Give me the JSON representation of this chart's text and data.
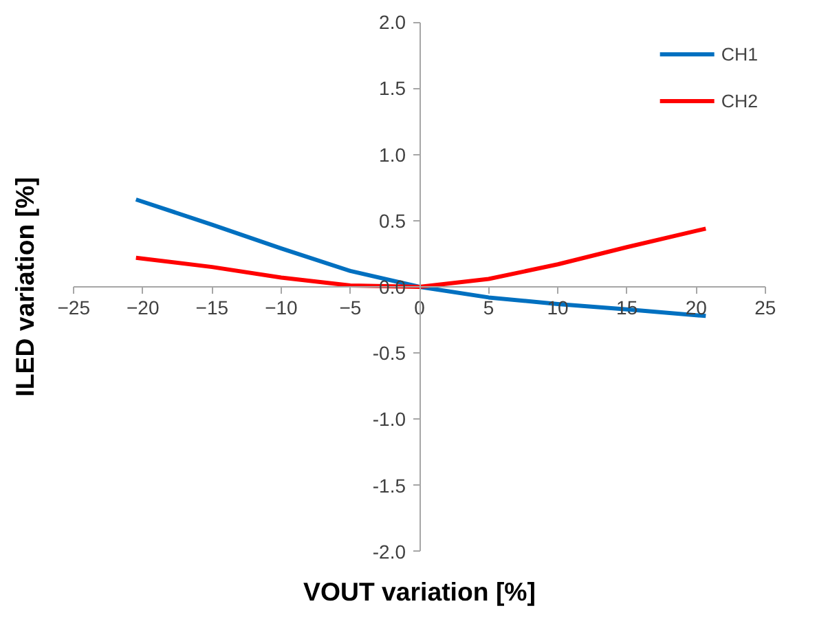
{
  "chart_data": {
    "type": "line",
    "xlabel": "VOUT variation [%]",
    "ylabel": "ILED variation [%]",
    "xlim": [
      -25,
      25
    ],
    "ylim": [
      -2.0,
      2.0
    ],
    "xticks": [
      -25,
      -20,
      -15,
      -10,
      -5,
      0,
      5,
      10,
      15,
      20,
      25
    ],
    "yticks": [
      {
        "value": -2,
        "label": "-2.0"
      },
      {
        "value": -1.5,
        "label": "-1.5"
      },
      {
        "value": -1,
        "label": "-1.0"
      },
      {
        "value": -0.5,
        "label": "-0.5"
      },
      {
        "value": 0,
        "label": "0.0"
      },
      {
        "value": 0.5,
        "label": "0.5"
      },
      {
        "value": 1,
        "label": "1.0"
      },
      {
        "value": 1.5,
        "label": "1.5"
      },
      {
        "value": 2,
        "label": "2.0"
      }
    ],
    "x": [
      -20.5,
      -15,
      -10,
      -5,
      0,
      5,
      10,
      15,
      20.7
    ],
    "series": [
      {
        "name": "CH1",
        "color": "#0070c0",
        "values": [
          0.66,
          0.47,
          0.29,
          0.12,
          0,
          -0.08,
          -0.13,
          -0.17,
          -0.22
        ]
      },
      {
        "name": "CH2",
        "color": "#ff0000",
        "values": [
          0.22,
          0.15,
          0.07,
          0.01,
          0,
          0.06,
          0.17,
          0.3,
          0.44
        ]
      }
    ],
    "legend": "top right",
    "marker": "none",
    "line_style": "solid"
  }
}
